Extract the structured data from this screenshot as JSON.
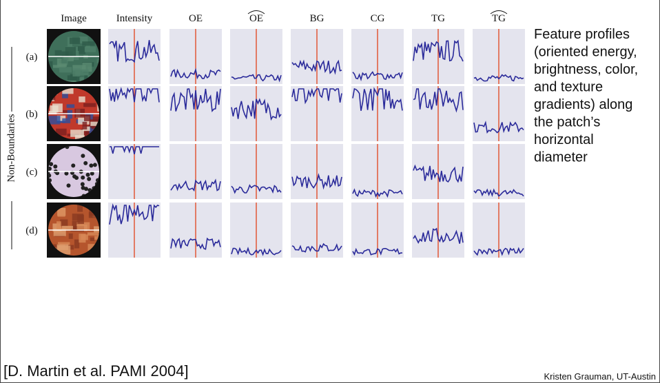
{
  "figure": {
    "columns": [
      "Image",
      "Intensity",
      "OE",
      "OE",
      "BG",
      "CG",
      "TG",
      "TG"
    ],
    "row_group_label": "Non-Boundaries",
    "rows": [
      "(a)",
      "(b)",
      "(c)",
      "(d)"
    ]
  },
  "caption": {
    "lines": [
      "Feature profiles",
      "(oriented energy,",
      "brightness, color,",
      "and texture",
      "gradients) along",
      "the patch’s",
      "horizontal",
      "diameter"
    ]
  },
  "citation": "[D. Martin et al. PAMI 2004]",
  "credit": "Kristen Grauman, UT-Austin"
}
